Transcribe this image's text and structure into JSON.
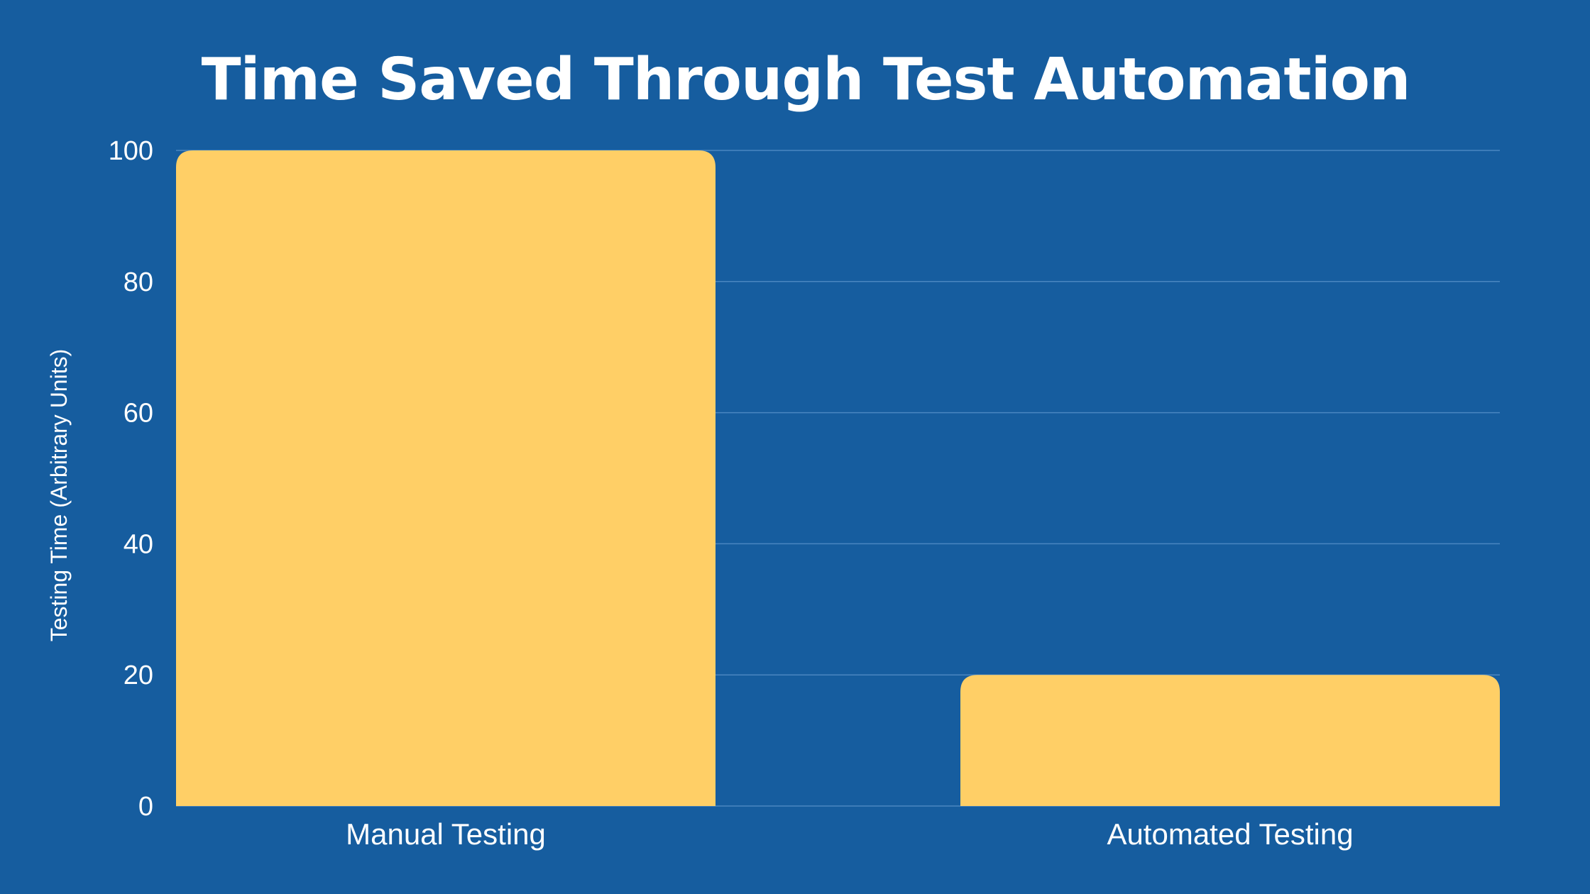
{
  "chart_data": {
    "type": "bar",
    "title": "Time Saved Through Test Automation",
    "xlabel": "",
    "ylabel": "Testing Time (Arbitrary Units)",
    "categories": [
      "Manual Testing",
      "Automated Testing"
    ],
    "values": [
      100,
      20
    ],
    "ylim": [
      0,
      100
    ],
    "yticks": [
      0,
      20,
      40,
      60,
      80,
      100
    ],
    "grid": true,
    "legend": "none"
  },
  "colors": {
    "background": "#165d9f",
    "bar": "#ffcf66",
    "gridline": "#4a86c0",
    "text": "#ffffff"
  }
}
